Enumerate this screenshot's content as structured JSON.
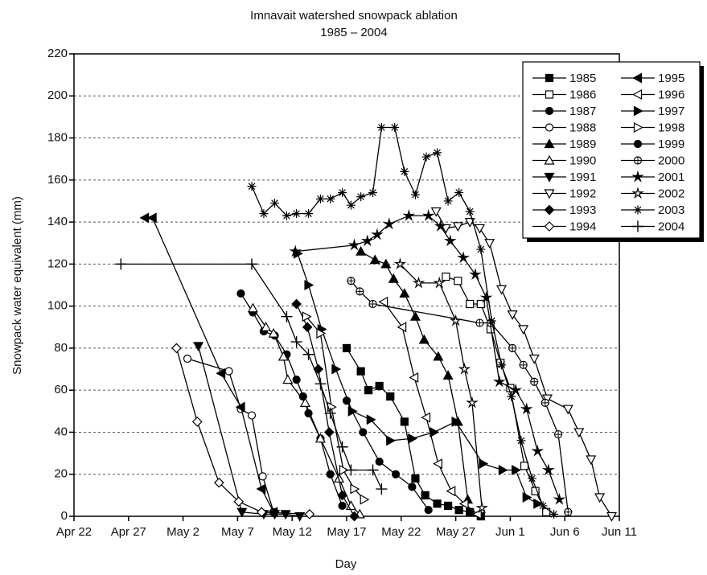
{
  "chart_data": {
    "type": "line",
    "title": "Imnavait watershed snowpack ablation",
    "subtitle": "1985 – 2004",
    "x_label": "Day",
    "y_label": "Snowpack water equivalent (mm)",
    "xlim": [
      0,
      50
    ],
    "ylim": [
      0,
      220
    ],
    "xticks": [
      {
        "value": 0,
        "label": "Apr 22"
      },
      {
        "value": 5,
        "label": "Apr 27"
      },
      {
        "value": 10,
        "label": "May 2"
      },
      {
        "value": 15,
        "label": "May 7"
      },
      {
        "value": 20,
        "label": "May 12"
      },
      {
        "value": 25,
        "label": "May 17"
      },
      {
        "value": 30,
        "label": "May 22"
      },
      {
        "value": 35,
        "label": "May 27"
      },
      {
        "value": 40,
        "label": "Jun 1"
      },
      {
        "value": 45,
        "label": "Jun 6"
      },
      {
        "value": 50,
        "label": "Jun 11"
      }
    ],
    "yticks": [
      0,
      20,
      40,
      60,
      80,
      100,
      120,
      140,
      160,
      180,
      200,
      220
    ],
    "grid": true,
    "legend": "upper right",
    "series": [
      {
        "name": "1985",
        "color": "#000",
        "marker": "square-filled",
        "x": [
          25.0,
          26.3,
          27.0,
          28.0,
          29.0,
          30.3,
          31.3,
          32.2,
          33.3,
          34.3,
          35.3,
          36.3,
          37.3
        ],
        "values": [
          80,
          69,
          60,
          62,
          57,
          45,
          18,
          10,
          6,
          5,
          3,
          2,
          0
        ]
      },
      {
        "name": "1986",
        "color": "#000",
        "marker": "square-open",
        "x": [
          34.1,
          35.2,
          36.3,
          37.3,
          38.2,
          39.1,
          40.0,
          41.3,
          42.3,
          43.3
        ],
        "values": [
          114,
          112,
          101,
          101,
          89,
          73,
          61,
          24,
          12,
          2
        ]
      },
      {
        "name": "1987",
        "color": "#000",
        "marker": "circle-filled",
        "x": [
          15.3,
          16.4,
          17.4,
          18.4,
          19.5,
          20.4,
          21.0,
          21.5,
          22.6,
          23.5,
          24.6
        ],
        "values": [
          106,
          97,
          88,
          86,
          77,
          65,
          57,
          49,
          37,
          20,
          5
        ]
      },
      {
        "name": "1988",
        "color": "#000",
        "marker": "circle-open",
        "x": [
          10.4,
          14.2,
          15.3,
          16.3,
          17.3,
          18.3
        ],
        "values": [
          75,
          69,
          51,
          48,
          19,
          2
        ]
      },
      {
        "name": "1989",
        "color": "#000",
        "marker": "triangle-up-filled",
        "x": [
          26.3,
          27.6,
          28.6,
          29.3,
          30.3,
          31.3,
          32.1,
          33.4,
          34.3,
          35.2,
          36.1
        ],
        "values": [
          126,
          122,
          120,
          113,
          106,
          95,
          84,
          76,
          67,
          45,
          8
        ]
      },
      {
        "name": "1990",
        "color": "#000",
        "marker": "triangle-up-open",
        "x": [
          16.4,
          17.6,
          18.3,
          19.2,
          19.6,
          21.2,
          22.6,
          24.3,
          25.4,
          26.2
        ],
        "values": [
          99,
          90,
          87,
          76,
          65,
          54,
          37,
          18,
          5,
          1
        ]
      },
      {
        "name": "1991",
        "color": "#000",
        "marker": "triangle-down-filled",
        "x": [
          11.4,
          15.4,
          17.4,
          18.4,
          19.4,
          20.7
        ],
        "values": [
          81,
          2,
          1,
          1,
          1,
          0
        ]
      },
      {
        "name": "1992",
        "color": "#000",
        "marker": "triangle-down-open",
        "x": [
          33.2,
          34.1,
          35.2,
          36.3,
          37.2,
          38.1,
          39.2,
          40.2,
          41.2,
          42.2,
          43.4,
          45.3,
          46.3,
          47.4,
          48.2,
          49.3
        ],
        "values": [
          145,
          137,
          138,
          140,
          137,
          130,
          108,
          96,
          89,
          75,
          56,
          51,
          40,
          27,
          9,
          0
        ]
      },
      {
        "name": "1993",
        "color": "#000",
        "marker": "diamond-filled",
        "x": [
          20.4,
          21.4,
          22.4,
          23.4,
          24.6,
          25.7
        ],
        "values": [
          101,
          90,
          70,
          40,
          10,
          0
        ]
      },
      {
        "name": "1994",
        "color": "#000",
        "marker": "diamond-open",
        "x": [
          9.4,
          11.3,
          13.3,
          15.1,
          17.2,
          21.6
        ],
        "values": [
          80,
          45,
          16,
          7,
          2,
          1
        ]
      },
      {
        "name": "1995",
        "color": "#000",
        "marker": "triangle-left-filled",
        "x": [
          6.5,
          7.2,
          13.5,
          15.3,
          17.2,
          18.3
        ],
        "values": [
          142,
          142,
          68,
          52,
          13,
          2
        ]
      },
      {
        "name": "1996",
        "color": "#000",
        "marker": "triangle-left-open",
        "x": [
          28.4,
          30.1,
          31.2,
          32.3,
          33.4,
          34.6,
          35.8,
          37.0
        ],
        "values": [
          102,
          90,
          66,
          47,
          25,
          12,
          6,
          1
        ]
      },
      {
        "name": "1997",
        "color": "#000",
        "marker": "triangle-right-filled",
        "x": [
          20.5,
          21.5,
          22.7,
          24.0,
          25.5,
          27.2,
          29.0,
          31.0,
          33.0,
          35.0,
          37.5,
          39.3,
          40.5,
          41.5,
          42.5
        ],
        "values": [
          125,
          110,
          89,
          70,
          50,
          46,
          36,
          37,
          40,
          45,
          25,
          22,
          22,
          9,
          6
        ]
      },
      {
        "name": "1998",
        "color": "#000",
        "marker": "triangle-right-open",
        "x": [
          21.3,
          22.6,
          23.6,
          24.7,
          25.7,
          26.6
        ],
        "values": [
          95,
          87,
          52,
          22,
          13,
          8
        ]
      },
      {
        "name": "1999",
        "color": "#000",
        "marker": "circle-filled",
        "x": [
          25.0,
          26.5,
          28.0,
          29.5,
          31.0,
          32.5
        ],
        "values": [
          55,
          40,
          26,
          20,
          14,
          3
        ]
      },
      {
        "name": "2000",
        "color": "#000",
        "marker": "circle-plus",
        "x": [
          25.4,
          26.2,
          27.4,
          37.2,
          38.2,
          40.2,
          41.2,
          42.2,
          43.2,
          44.4,
          45.3
        ],
        "values": [
          112,
          107,
          101,
          92,
          92,
          80,
          72,
          64,
          54,
          39,
          2
        ]
      },
      {
        "name": "2001",
        "color": "#000",
        "marker": "star-filled",
        "x": [
          20.3,
          25.7,
          26.9,
          27.8,
          28.9,
          30.7,
          32.5,
          33.6,
          34.5,
          35.7,
          36.8,
          37.8,
          39.0,
          40.5,
          41.5,
          42.5,
          43.5,
          44.5
        ],
        "values": [
          126,
          129,
          131,
          134,
          139,
          143,
          143,
          138,
          131,
          123,
          115,
          104,
          64,
          60,
          51,
          31,
          22,
          8
        ]
      },
      {
        "name": "2002",
        "color": "#000",
        "marker": "star-open",
        "x": [
          29.9,
          31.6,
          33.5,
          35.0,
          35.8,
          36.5,
          37.4
        ],
        "values": [
          120,
          111,
          111,
          93,
          70,
          54,
          4
        ]
      },
      {
        "name": "2003",
        "color": "#000",
        "marker": "asterisk",
        "x": [
          16.3,
          17.4,
          18.4,
          19.5,
          20.4,
          21.5,
          22.6,
          23.5,
          24.6,
          25.4,
          26.3,
          27.4,
          28.2,
          29.4,
          30.3,
          31.3,
          32.3,
          33.3,
          34.3,
          35.3,
          36.3,
          37.3,
          38.3,
          39.2,
          40.1,
          41.0,
          42.0,
          43.0,
          44.0
        ],
        "values": [
          157,
          144,
          149,
          143,
          144,
          144,
          151,
          151,
          154,
          148,
          152,
          154,
          185,
          185,
          164,
          153,
          171,
          173,
          150,
          154,
          145,
          127,
          93,
          72,
          57,
          36,
          18,
          5,
          1
        ]
      },
      {
        "name": "2004",
        "color": "#000",
        "marker": "plus",
        "x": [
          4.3,
          16.3,
          19.5,
          20.4,
          21.5,
          22.6,
          23.5,
          24.6,
          25.4,
          27.4,
          28.2
        ],
        "values": [
          120,
          120,
          95,
          83,
          77,
          63,
          49,
          33,
          22,
          22,
          13
        ]
      }
    ]
  }
}
